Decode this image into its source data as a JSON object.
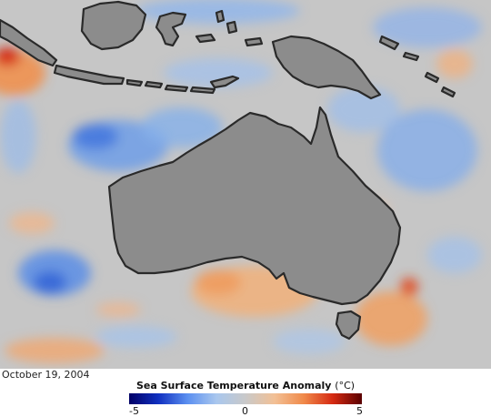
{
  "map": {
    "date": "October 19, 2004",
    "legend": {
      "title": "Sea Surface Temperature Anomaly",
      "unit": "(°C)",
      "min_label": "-5",
      "mid_label": "0",
      "max_label": "5",
      "colors": [
        "#000066",
        "#1030c0",
        "#5b8ff0",
        "#a9c7ee",
        "#c9c9c9",
        "#f2c095",
        "#f08a4a",
        "#d52a12",
        "#5a0000"
      ]
    },
    "colors": {
      "ocean": "#c6c6c6",
      "land": "#8c8c8c",
      "coast": "#2a2a2a"
    }
  }
}
